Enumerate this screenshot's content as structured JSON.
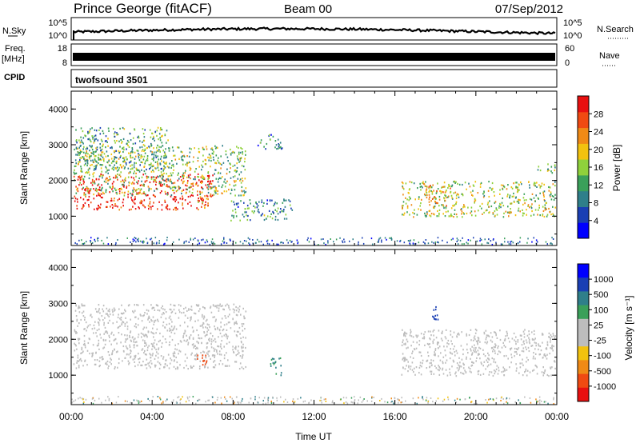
{
  "header": {
    "station": "Prince George (fitACF)",
    "beam": "Beam 00",
    "date": "07/Sep/2012"
  },
  "strips": {
    "nsky": {
      "label": "N.Sky",
      "tick_top": "10^5",
      "tick_bottom": "10^0",
      "right_label": "N.Search",
      "right_tick_top": "10^5",
      "right_tick_bottom": "10^0"
    },
    "freq": {
      "label_top": "Freq.",
      "label_unit": "[MHz]",
      "tick_top": "18",
      "tick_bottom": "8",
      "right_label": "Nave",
      "right_tick_top": "60",
      "right_tick_bottom": "0"
    },
    "cpid": {
      "label": "CPID",
      "program": "twofsound 3501"
    }
  },
  "colors": {
    "power": [
      "#0000ff",
      "#1a3fb4",
      "#2f7f8a",
      "#3aa05a",
      "#8fd13b",
      "#f2c20f",
      "#f08a16",
      "#f04a12",
      "#e81010"
    ],
    "velocity": [
      "#e81010",
      "#f04a12",
      "#f08a16",
      "#f2c20f",
      "#bdbdbd",
      "#bdbdbd",
      "#3aa05a",
      "#2f7f8a",
      "#1a3fb4",
      "#0000ff"
    ],
    "ground_scatter": "#bdbdbd"
  },
  "chart_data": [
    {
      "type": "heatmap",
      "panel": "power",
      "xlabel": "",
      "ylabel": "Slant Range [km]",
      "xlim": [
        0,
        24
      ],
      "ylim": [
        180,
        4500
      ],
      "yticks": [
        "1000",
        "2000",
        "3000",
        "4000"
      ],
      "colorbar": {
        "label": "Power [dB]",
        "ticks": [
          "4",
          "8",
          "12",
          "16",
          "20",
          "24",
          "28"
        ],
        "range": [
          0,
          30
        ]
      },
      "features": [
        {
          "t": [
            0.1,
            7.0
          ],
          "range": [
            1200,
            2200
          ],
          "power_db": 28
        },
        {
          "t": [
            0.1,
            8.6
          ],
          "range": [
            1600,
            3000
          ],
          "power_db": 14
        },
        {
          "t": [
            0.2,
            4.8
          ],
          "range": [
            2300,
            3500
          ],
          "power_db": 12
        },
        {
          "t": [
            6.2,
            6.8
          ],
          "range": [
            1250,
            1600
          ],
          "power_db": 22
        },
        {
          "t": [
            7.8,
            10.9
          ],
          "range": [
            900,
            1500
          ],
          "power_db": 10
        },
        {
          "t": [
            9.2,
            10.4
          ],
          "range": [
            2900,
            3300
          ],
          "power_db": 8
        },
        {
          "t": [
            16.3,
            23.9
          ],
          "range": [
            1000,
            2000
          ],
          "power_db": 16
        },
        {
          "t": [
            17.5,
            18.8
          ],
          "range": [
            1300,
            1900
          ],
          "power_db": 20
        },
        {
          "t": [
            23.0,
            23.9
          ],
          "range": [
            2200,
            2500
          ],
          "power_db": 14
        }
      ]
    },
    {
      "type": "heatmap",
      "panel": "velocity",
      "xlabel": "Time UT",
      "ylabel": "Slant Range [km]",
      "xlim": [
        0,
        24
      ],
      "ylim": [
        180,
        4500
      ],
      "xticks": [
        "00:00",
        "04:00",
        "08:00",
        "12:00",
        "16:00",
        "20:00",
        "00:00"
      ],
      "yticks": [
        "1000",
        "2000",
        "3000",
        "4000"
      ],
      "colorbar": {
        "label": "Velocity [m s⁻¹]",
        "ticks": [
          "1000",
          "500",
          "100",
          "25",
          "-25",
          "-100",
          "-500",
          "-1000"
        ]
      },
      "features": [
        {
          "t": [
            0.1,
            8.6
          ],
          "range": [
            1200,
            3000
          ],
          "velocity_ms": 0,
          "ground_scatter": true
        },
        {
          "t": [
            6.2,
            6.8
          ],
          "range": [
            1250,
            1600
          ],
          "velocity_ms": -900
        },
        {
          "t": [
            9.8,
            10.4
          ],
          "range": [
            1000,
            1500
          ],
          "velocity_ms": 150
        },
        {
          "t": [
            16.3,
            23.9
          ],
          "range": [
            1000,
            2300
          ],
          "velocity_ms": 0,
          "ground_scatter": true
        },
        {
          "t": [
            17.8,
            18.2
          ],
          "range": [
            2500,
            3000
          ],
          "velocity_ms": 800
        }
      ]
    }
  ]
}
